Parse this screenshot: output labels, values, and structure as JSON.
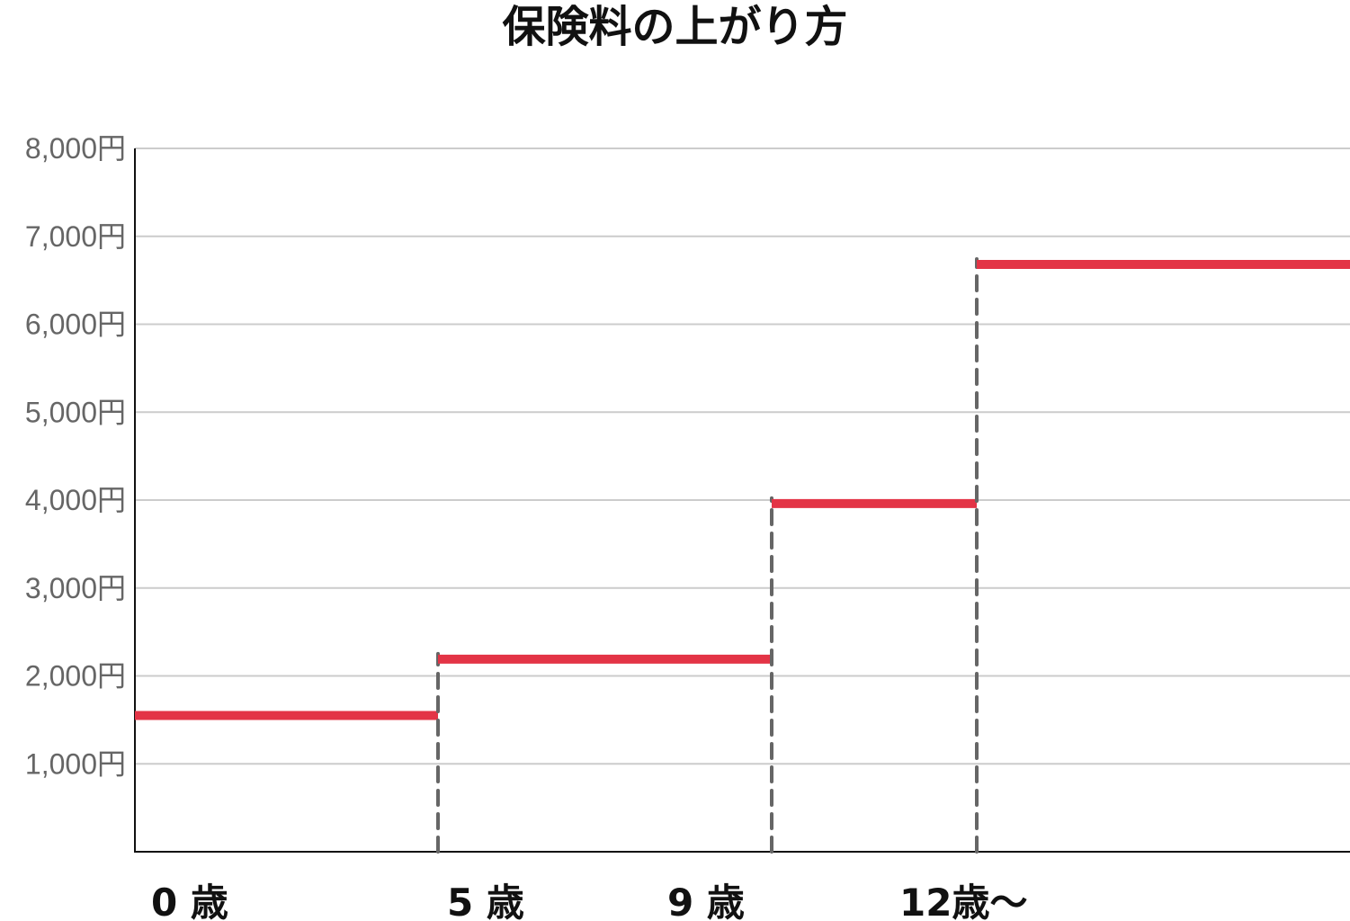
{
  "chart_data": {
    "type": "line",
    "subtype": "step",
    "title": "保険料の上がり方",
    "xlabel": "",
    "ylabel": "",
    "ylim": [
      0,
      8000
    ],
    "yticks": [
      1000,
      2000,
      3000,
      4000,
      5000,
      6000,
      7000,
      8000
    ],
    "ytick_labels": [
      "1,000円",
      "2,000円",
      "3,000円",
      "4,000円",
      "5,000円",
      "6,000円",
      "7,000円",
      "8,000円"
    ],
    "xtick_labels": [
      "0 歳",
      "5 歳",
      "9 歳",
      "12歳〜"
    ],
    "grid": true,
    "steps": [
      {
        "from": "0 歳",
        "to": "5 歳",
        "value": 1550
      },
      {
        "from": "5 歳",
        "to": "9 歳",
        "value": 2190
      },
      {
        "from": "9 歳",
        "to": "12歳〜",
        "value": 3960
      },
      {
        "from": "12歳〜",
        "to": null,
        "value": 6680
      }
    ],
    "colors": {
      "line": "#e33446",
      "grid": "#cccccc",
      "dashed": "#666666",
      "axis": "#111111",
      "tick_text": "#666666"
    }
  }
}
